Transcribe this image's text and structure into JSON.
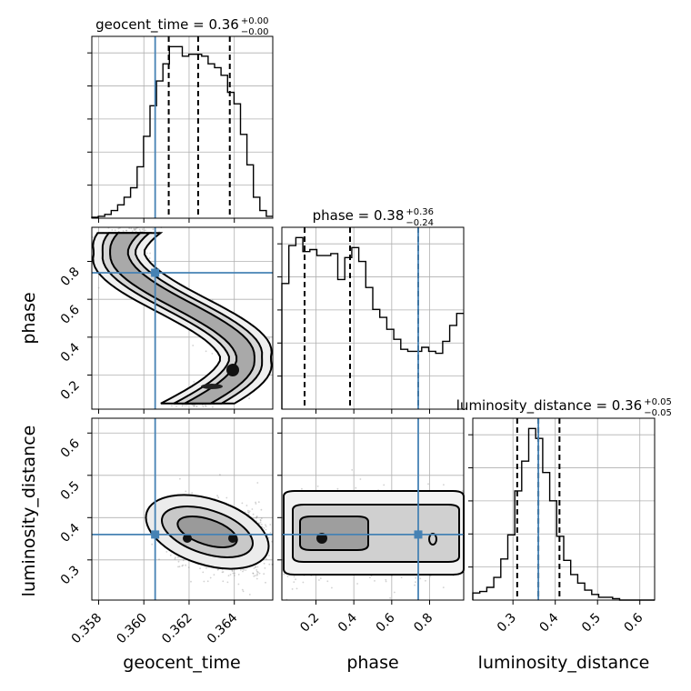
{
  "chart_data": {
    "type": "corner",
    "parameters": [
      "geocent_time",
      "phase",
      "luminosity_distance"
    ],
    "truths": {
      "geocent_time": 0.3605,
      "phase": 0.74,
      "luminosity_distance": 0.36
    },
    "titles": [
      {
        "param": "geocent_time",
        "text": "geocent_time = 0.36",
        "sup": "+0.00",
        "sub": "−0.00"
      },
      {
        "param": "phase",
        "text": "phase = 0.38",
        "sup": "+0.36",
        "sub": "−0.24"
      },
      {
        "param": "luminosity_distance",
        "text": "luminosity_distance = 0.36",
        "sup": "+0.05",
        "sub": "−0.05"
      }
    ],
    "axis_labels": {
      "geocent_time": "geocent_time",
      "phase": "phase",
      "luminosity_distance": "luminosity_distance"
    },
    "ticks": {
      "geocent_time": [
        "0.358",
        "0.360",
        "0.362",
        "0.364"
      ],
      "phase": [
        "0.2",
        "0.4",
        "0.6",
        "0.8"
      ],
      "luminosity_distance": [
        "0.3",
        "0.4",
        "0.5",
        "0.6"
      ]
    },
    "ranges": {
      "geocent_time": [
        0.3577,
        0.3657
      ],
      "phase": [
        0.02,
        0.98
      ],
      "luminosity_distance": [
        0.205,
        0.635
      ]
    },
    "quantiles": {
      "geocent_time": [
        0.3611,
        0.3624,
        0.3638
      ],
      "phase": [
        0.14,
        0.38,
        0.74
      ],
      "luminosity_distance": [
        0.31,
        0.36,
        0.41
      ]
    },
    "histograms": {
      "geocent_time": [
        0.5,
        1,
        2,
        4,
        7,
        11,
        16,
        27,
        43,
        59,
        72,
        81,
        90,
        90,
        85,
        86,
        86,
        85,
        81,
        79,
        75,
        66,
        60,
        44,
        28,
        11,
        4,
        1
      ],
      "phase": [
        63,
        82,
        86,
        79,
        80,
        77,
        77,
        78,
        65,
        76,
        81,
        74,
        61,
        50,
        46,
        40,
        35,
        30,
        29,
        29,
        31,
        29,
        28,
        34,
        42,
        48
      ],
      "luminosity_distance": [
        5,
        6,
        9,
        16,
        29,
        46,
        77,
        98,
        121,
        114,
        90,
        70,
        45,
        28,
        18,
        12,
        7,
        4,
        2,
        2,
        1,
        0,
        0,
        0,
        0,
        0
      ]
    }
  }
}
